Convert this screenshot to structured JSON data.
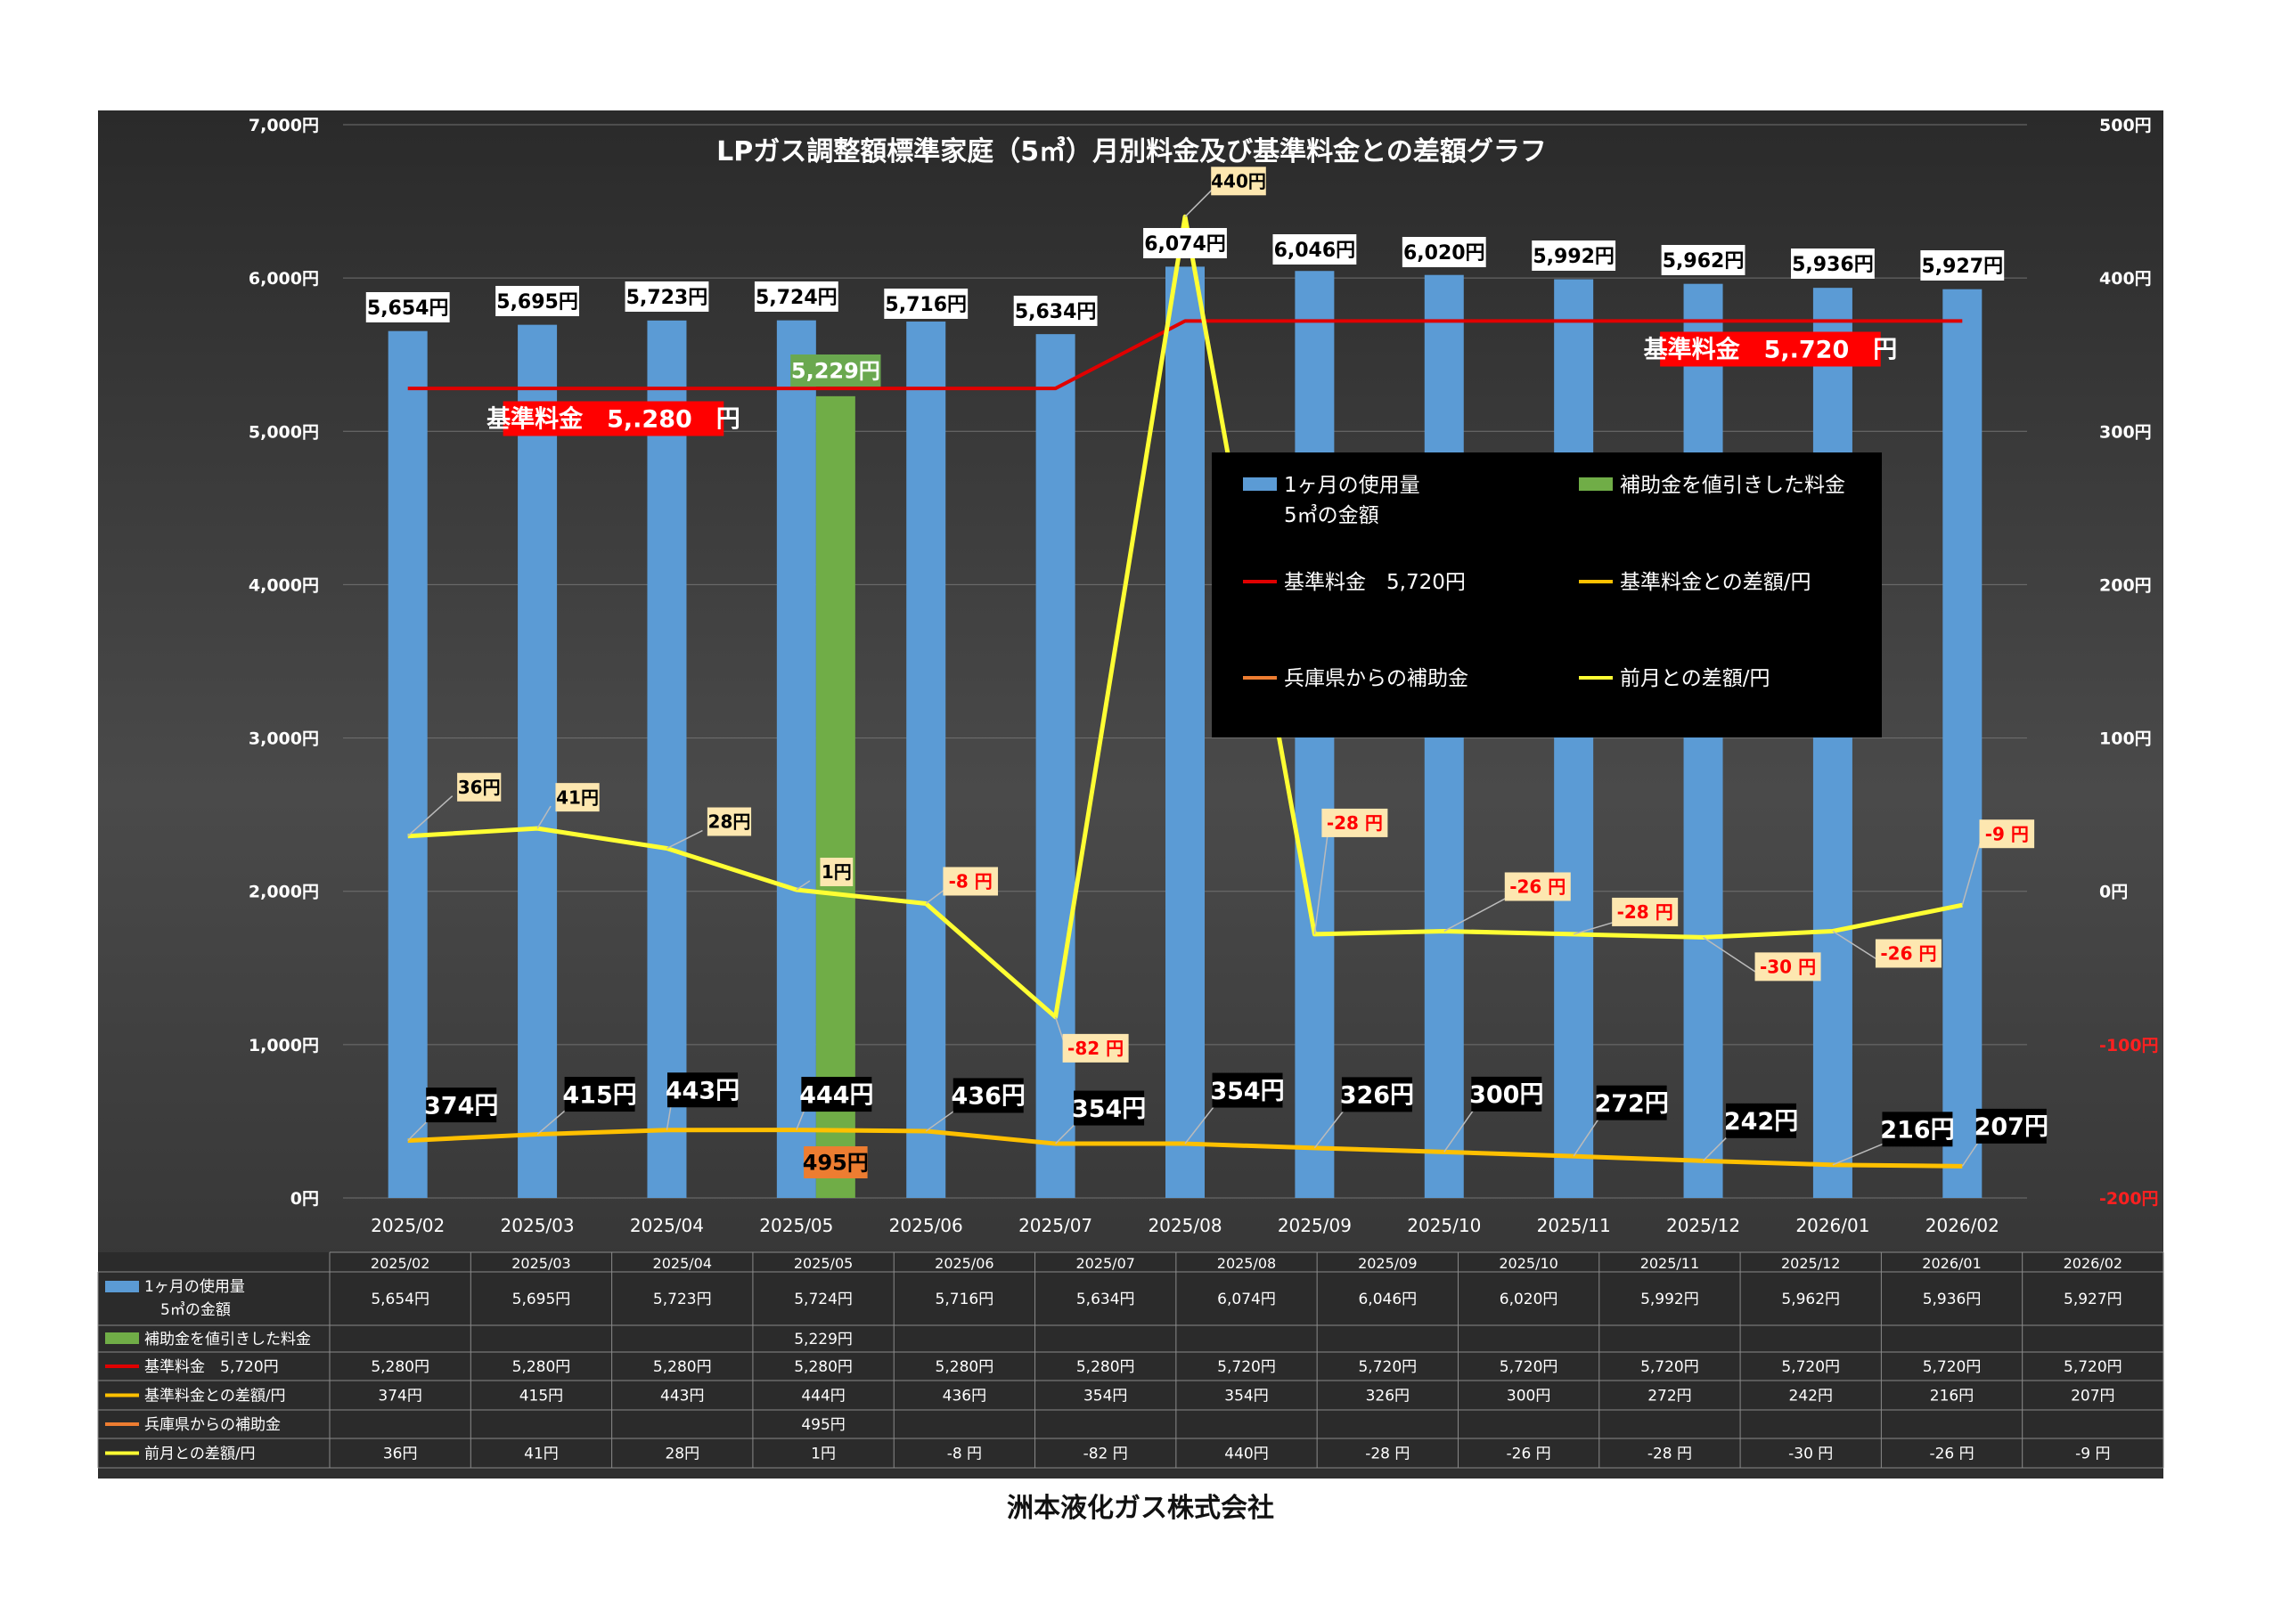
{
  "company": "洲本液化ガス株式会社",
  "chart_data": {
    "type": "bar",
    "title": "LPガス調整額標準家庭（5㎥）月別料金及び基準料金との差額グラフ",
    "categories": [
      "2025/02",
      "2025/03",
      "2025/04",
      "2025/05",
      "2025/06",
      "2025/07",
      "2025/08",
      "2025/09",
      "2025/10",
      "2025/11",
      "2025/12",
      "2026/01",
      "2026/02"
    ],
    "y_left": {
      "min": 0,
      "max": 7000,
      "ticks": [
        "0円",
        "1,000円",
        "2,000円",
        "3,000円",
        "4,000円",
        "5,000円",
        "6,000円",
        "7,000円"
      ]
    },
    "y_right": {
      "min": -200,
      "max": 500,
      "ticks": [
        "-200円",
        "-100円",
        "0円",
        "100円",
        "200円",
        "300円",
        "400円",
        "500円"
      ]
    },
    "grid": true,
    "legend_placement": "center-right",
    "series": [
      {
        "name": "1ヶ月の使用量\n5㎥の金額",
        "legend_line1": "1ヶ月の使用量",
        "legend_line2": "5㎥の金額",
        "type": "bar",
        "axis": "left",
        "color": "#5b9bd5",
        "values": [
          5654,
          5695,
          5723,
          5724,
          5716,
          5634,
          6074,
          6046,
          6020,
          5992,
          5962,
          5936,
          5927
        ],
        "labels": [
          "5,654円",
          "5,695円",
          "5,723円",
          "5,724円",
          "5,716円",
          "5,634円",
          "6,074円",
          "6,046円",
          "6,020円",
          "5,992円",
          "5,962円",
          "5,936円",
          "5,927円"
        ]
      },
      {
        "name": "補助金を値引きした料金",
        "type": "bar",
        "axis": "left",
        "color": "#70ad47",
        "values": [
          null,
          null,
          null,
          5229,
          null,
          null,
          null,
          null,
          null,
          null,
          null,
          null,
          null
        ],
        "labels": [
          "",
          "",
          "",
          "5,229円",
          "",
          "",
          "",
          "",
          "",
          "",
          "",
          "",
          ""
        ]
      },
      {
        "name": "基準料金　5,720円",
        "type": "line",
        "axis": "left",
        "color": "#e00000",
        "values": [
          5280,
          5280,
          5280,
          5280,
          5280,
          5280,
          5720,
          5720,
          5720,
          5720,
          5720,
          5720,
          5720
        ],
        "labels": [
          "5,280円",
          "5,280円",
          "5,280円",
          "5,280円",
          "5,280円",
          "5,280円",
          "5,720円",
          "5,720円",
          "5,720円",
          "5,720円",
          "5,720円",
          "5,720円",
          "5,720円"
        ]
      },
      {
        "name": "基準料金との差額/円",
        "type": "line",
        "axis": "left",
        "color": "#ffc000",
        "values": [
          374,
          415,
          443,
          444,
          436,
          354,
          354,
          326,
          300,
          272,
          242,
          216,
          207
        ],
        "labels": [
          "374円",
          "415円",
          "443円",
          "444円",
          "436円",
          "354円",
          "354円",
          "326円",
          "300円",
          "272円",
          "242円",
          "216円",
          "207円"
        ]
      },
      {
        "name": "兵庫県からの補助金",
        "type": "line",
        "axis": "left",
        "color": "#ed7d31",
        "values": [
          null,
          null,
          null,
          495,
          null,
          null,
          null,
          null,
          null,
          null,
          null,
          null,
          null
        ],
        "labels": [
          "",
          "",
          "",
          "495円",
          "",
          "",
          "",
          "",
          "",
          "",
          "",
          "",
          ""
        ]
      },
      {
        "name": "前月との差額/円",
        "type": "line",
        "axis": "right",
        "color": "#ffff33",
        "values": [
          36,
          41,
          28,
          1,
          -8,
          -82,
          440,
          -28,
          -26,
          -28,
          -30,
          -26,
          -9
        ],
        "labels": [
          "36円",
          "41円",
          "28円",
          "1円",
          "-8 円",
          "-82 円",
          "440円",
          "-28 円",
          "-26 円",
          "-28 円",
          "-30 円",
          "-26 円",
          "-9 円"
        ]
      }
    ],
    "annotations": [
      {
        "text": "基準料金　5,.280　円"
      },
      {
        "text": "基準料金　5,.720　円"
      }
    ]
  }
}
